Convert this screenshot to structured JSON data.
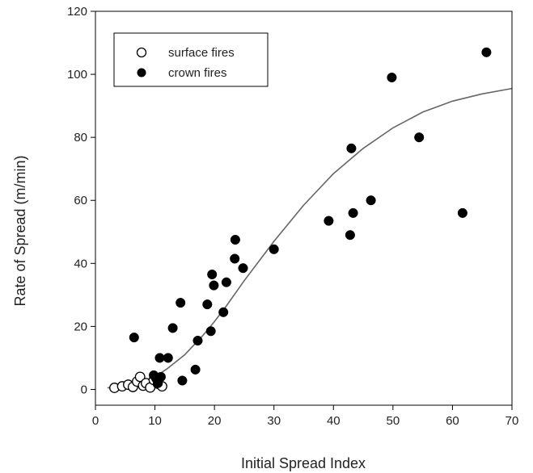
{
  "chart_data": {
    "type": "scatter",
    "xlabel": "Initial Spread Index",
    "ylabel": "Rate of Spread (m/min)",
    "xlim": [
      0,
      70
    ],
    "ylim": [
      -5,
      120
    ],
    "xticks": [
      0,
      10,
      20,
      30,
      40,
      50,
      60,
      70
    ],
    "yticks": [
      0,
      20,
      40,
      60,
      80,
      100,
      120
    ],
    "grid": false,
    "legend_position": "top-left",
    "legend": [
      "surface fires",
      "crown fires"
    ],
    "series": [
      {
        "name": "surface fires",
        "marker": "open-circle",
        "points": [
          [
            3.2,
            0.5
          ],
          [
            4.5,
            1.0
          ],
          [
            5.5,
            1.5
          ],
          [
            6.3,
            0.8
          ],
          [
            7.0,
            2.5
          ],
          [
            7.5,
            4.0
          ],
          [
            8.0,
            1.2
          ],
          [
            8.5,
            2.0
          ],
          [
            9.2,
            0.6
          ],
          [
            9.8,
            3.0
          ],
          [
            10.5,
            1.8
          ],
          [
            11.2,
            1.0
          ]
        ]
      },
      {
        "name": "crown fires",
        "marker": "filled-circle",
        "points": [
          [
            6.5,
            16.5
          ],
          [
            9.8,
            4.5
          ],
          [
            10.2,
            3.5
          ],
          [
            10.5,
            2.0
          ],
          [
            10.8,
            10.0
          ],
          [
            11.0,
            4.0
          ],
          [
            12.2,
            10.0
          ],
          [
            13.0,
            19.5
          ],
          [
            14.3,
            27.5
          ],
          [
            14.6,
            2.8
          ],
          [
            16.8,
            6.3
          ],
          [
            17.2,
            15.5
          ],
          [
            18.8,
            27.0
          ],
          [
            19.4,
            18.5
          ],
          [
            19.6,
            36.5
          ],
          [
            19.9,
            33.0
          ],
          [
            21.5,
            24.5
          ],
          [
            22.0,
            34.0
          ],
          [
            23.4,
            41.5
          ],
          [
            23.5,
            47.5
          ],
          [
            24.8,
            38.5
          ],
          [
            30.0,
            44.5
          ],
          [
            39.2,
            53.5
          ],
          [
            42.8,
            49.0
          ],
          [
            43.0,
            76.5
          ],
          [
            43.3,
            56.0
          ],
          [
            46.3,
            60.0
          ],
          [
            49.8,
            99.0
          ],
          [
            54.4,
            80.0
          ],
          [
            61.7,
            56.0
          ],
          [
            65.7,
            107.0
          ]
        ]
      }
    ],
    "fit_curve": {
      "type": "line",
      "points": [
        [
          2,
          0.5
        ],
        [
          5,
          1.0
        ],
        [
          8,
          2.5
        ],
        [
          10,
          4.0
        ],
        [
          12,
          6.5
        ],
        [
          15,
          11.0
        ],
        [
          18,
          17.0
        ],
        [
          20,
          21.5
        ],
        [
          22,
          26.5
        ],
        [
          25,
          34.5
        ],
        [
          28,
          42.0
        ],
        [
          30,
          47.0
        ],
        [
          35,
          58.5
        ],
        [
          40,
          68.5
        ],
        [
          45,
          76.5
        ],
        [
          50,
          83.0
        ],
        [
          55,
          88.0
        ],
        [
          60,
          91.5
        ],
        [
          65,
          93.8
        ],
        [
          70,
          95.5
        ]
      ]
    }
  }
}
